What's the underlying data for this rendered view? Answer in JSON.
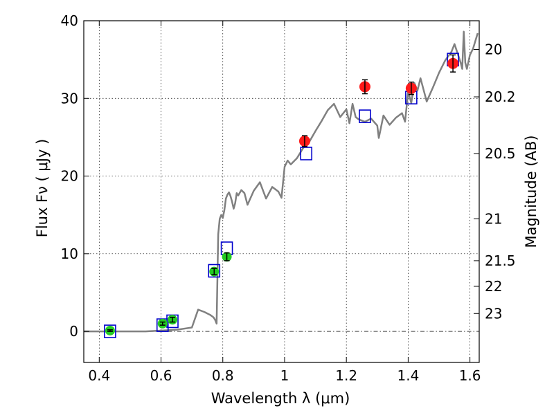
{
  "chart_data": {
    "type": "line",
    "xlabel": "Wavelength  λ (μm)",
    "ylabel": "Flux  Fν  ( μJy )",
    "ylabel_right": "Magnitude (AB)",
    "xlim": [
      0.35,
      1.63
    ],
    "ylim": [
      -4,
      40
    ],
    "x_ticks": [
      0.4,
      0.6,
      0.8,
      1.0,
      1.2,
      1.4,
      1.6
    ],
    "x_tick_labels": [
      "0.4",
      "0.6",
      "0.8",
      "1",
      "1.2",
      "1.4",
      "1.6"
    ],
    "y_ticks": [
      0,
      10,
      20,
      30,
      40
    ],
    "y_tick_labels": [
      "0",
      "10",
      "20",
      "30",
      "40"
    ],
    "right_ticks": [
      {
        "label": "20",
        "flux": 36.3
      },
      {
        "label": "20.2",
        "flux": 30.2
      },
      {
        "label": "20.5",
        "flux": 22.9
      },
      {
        "label": "21",
        "flux": 14.5
      },
      {
        "label": "21.5",
        "flux": 9.1
      },
      {
        "label": "22",
        "flux": 5.8
      },
      {
        "label": "23",
        "flux": 2.3
      }
    ],
    "grid": true,
    "colors": {
      "model": "#808080",
      "green": "#22cc22",
      "red": "#ff1a1a",
      "box": "#0000cc",
      "errorbar": "#000000",
      "zero_line": "#444444"
    },
    "series": [
      {
        "kind": "model_spectrum",
        "x": [
          0.35,
          0.45,
          0.55,
          0.65,
          0.7,
          0.72,
          0.74,
          0.76,
          0.77,
          0.775,
          0.78,
          0.785,
          0.79,
          0.795,
          0.8,
          0.805,
          0.81,
          0.815,
          0.82,
          0.825,
          0.83,
          0.835,
          0.84,
          0.845,
          0.85,
          0.86,
          0.87,
          0.88,
          0.9,
          0.92,
          0.94,
          0.96,
          0.98,
          0.99,
          1.0,
          1.01,
          1.02,
          1.04,
          1.06,
          1.08,
          1.1,
          1.12,
          1.14,
          1.16,
          1.18,
          1.2,
          1.21,
          1.22,
          1.23,
          1.24,
          1.26,
          1.28,
          1.3,
          1.305,
          1.32,
          1.34,
          1.36,
          1.38,
          1.39,
          1.4,
          1.41,
          1.42,
          1.43,
          1.44,
          1.46,
          1.48,
          1.5,
          1.52,
          1.54,
          1.55,
          1.56,
          1.57,
          1.575,
          1.58,
          1.585,
          1.59,
          1.6,
          1.61,
          1.625
        ],
        "y": [
          0.0,
          0.0,
          0.0,
          0.2,
          0.5,
          2.8,
          2.5,
          2.1,
          1.8,
          1.5,
          1.0,
          12.5,
          14.5,
          15.0,
          14.6,
          15.6,
          17.1,
          17.6,
          17.9,
          17.4,
          16.7,
          15.8,
          16.5,
          17.8,
          17.5,
          18.2,
          17.8,
          16.3,
          18.1,
          19.2,
          17.1,
          18.6,
          18.0,
          17.2,
          21.2,
          22.0,
          21.5,
          22.3,
          23.6,
          24.4,
          25.8,
          27.1,
          28.5,
          29.3,
          27.6,
          28.6,
          26.8,
          29.3,
          27.6,
          27.3,
          27.0,
          27.4,
          26.5,
          24.9,
          27.8,
          26.6,
          27.5,
          28.1,
          27.0,
          30.9,
          29.4,
          32.0,
          31.0,
          32.6,
          29.6,
          31.4,
          33.3,
          34.9,
          36.0,
          37.0,
          35.8,
          34.6,
          33.8,
          38.6,
          34.6,
          33.8,
          35.6,
          36.4,
          38.4
        ]
      },
      {
        "kind": "green_points",
        "x": [
          0.435,
          0.605,
          0.637,
          0.772,
          0.813
        ],
        "y": [
          0.1,
          1.0,
          1.5,
          7.7,
          9.6
        ],
        "err": [
          0.1,
          0.2,
          0.3,
          0.4,
          0.5
        ]
      },
      {
        "kind": "red_points",
        "x": [
          1.065,
          1.26,
          1.41,
          1.545
        ],
        "y": [
          24.5,
          31.5,
          31.3,
          34.5
        ],
        "err": [
          0.7,
          0.9,
          0.8,
          1.1
        ]
      },
      {
        "kind": "model_band_boxes",
        "x": [
          0.435,
          0.605,
          0.637,
          0.772,
          0.813,
          1.07,
          1.26,
          1.41,
          1.545
        ],
        "y": [
          0.0,
          0.8,
          1.3,
          7.8,
          10.7,
          22.9,
          27.7,
          30.1,
          35.0
        ]
      }
    ]
  }
}
